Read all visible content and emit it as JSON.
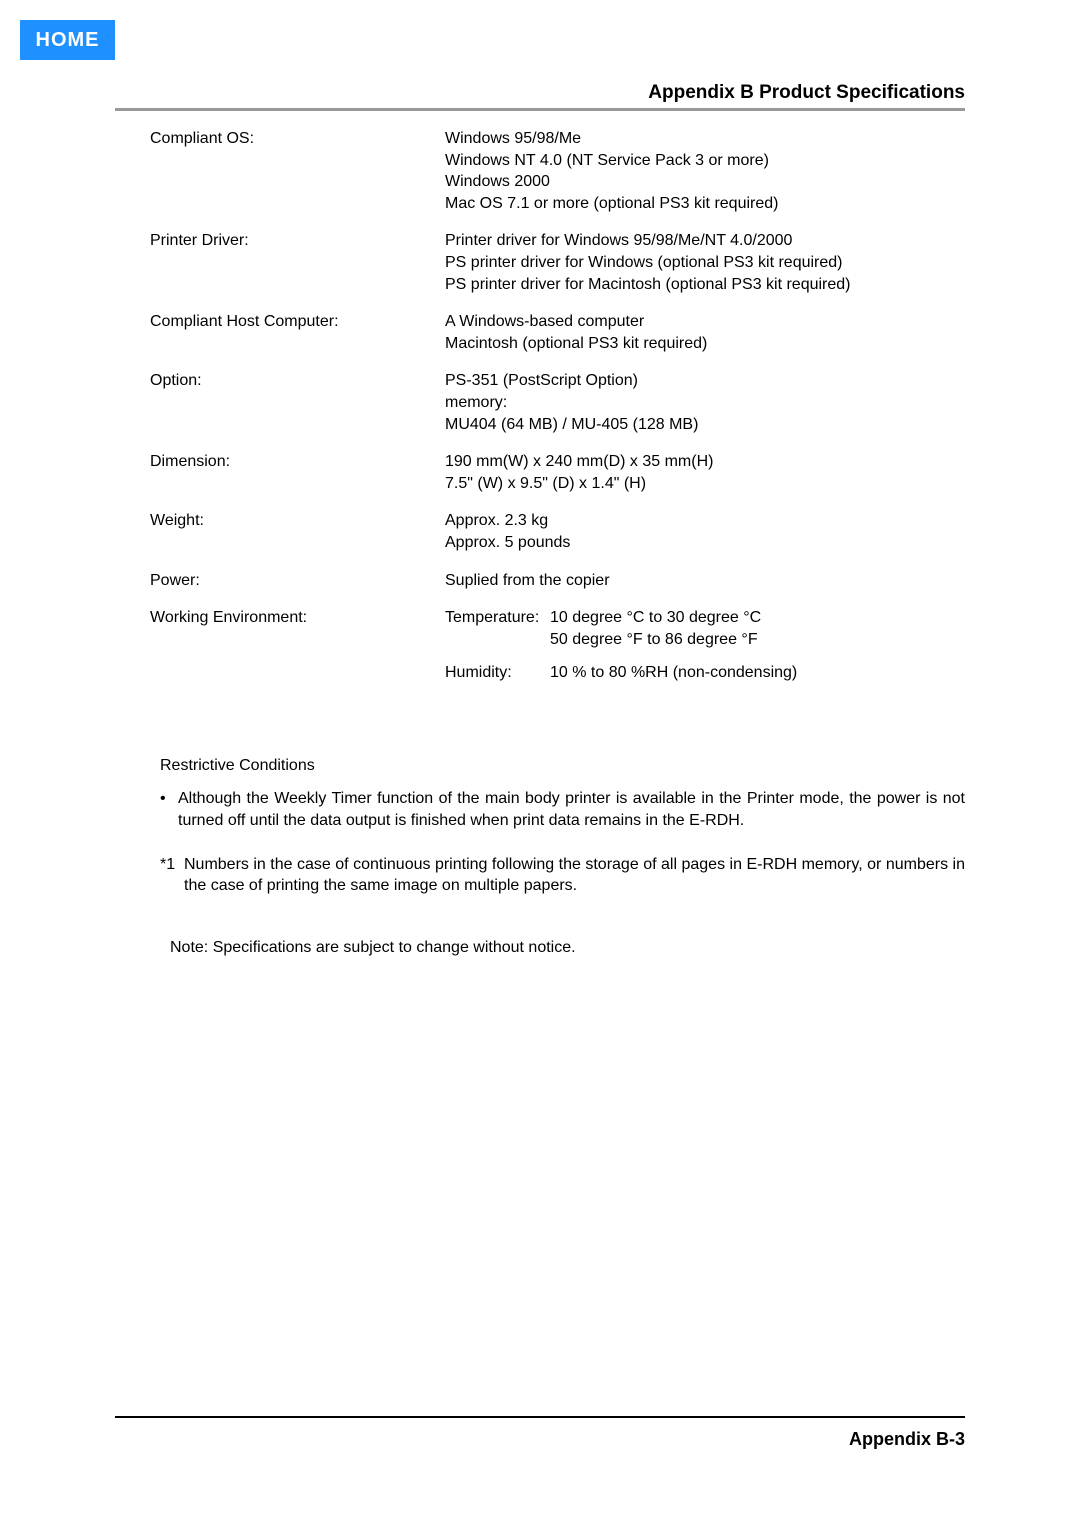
{
  "nav": {
    "home_label": "HOME"
  },
  "header": {
    "section_title": "Appendix B Product Specifications"
  },
  "specs": [
    {
      "label": "Compliant OS:",
      "lines": [
        "Windows 95/98/Me",
        "Windows NT 4.0 (NT Service Pack 3 or more)",
        "Windows 2000",
        "Mac OS 7.1 or more (optional PS3 kit required)"
      ]
    },
    {
      "label": "Printer Driver:",
      "lines": [
        "Printer driver for Windows 95/98/Me/NT 4.0/2000",
        "PS printer driver for Windows (optional PS3 kit required)",
        "PS printer driver for Macintosh (optional PS3 kit required)"
      ]
    },
    {
      "label": "Compliant Host Computer:",
      "lines": [
        "A Windows-based computer",
        "Macintosh (optional PS3 kit required)"
      ]
    },
    {
      "label": "Option:",
      "lines": [
        "PS-351 (PostScript Option)",
        "memory:",
        "MU404 (64 MB) / MU-405 (128 MB)"
      ]
    },
    {
      "label": "Dimension:",
      "lines": [
        "190 mm(W) x 240 mm(D) x 35 mm(H)",
        "7.5\" (W) x 9.5\" (D) x 1.4\" (H)"
      ]
    },
    {
      "label": "Weight:",
      "lines": [
        "Approx. 2.3 kg",
        "Approx. 5 pounds"
      ]
    },
    {
      "label": "Power:",
      "lines": [
        "Suplied from the copier"
      ]
    }
  ],
  "working_env": {
    "label": "Working Environment:",
    "rows": [
      {
        "sublabel": "Temperature:",
        "lines": [
          "10 degree °C to 30 degree °C",
          "50 degree °F to 86 degree °F"
        ]
      },
      {
        "sublabel": "Humidity:",
        "lines": [
          "10 % to 80 %RH (non-condensing)"
        ]
      }
    ]
  },
  "restrictive": {
    "title": "Restrictive Conditions",
    "bullet": "Although the Weekly Timer function of the main body printer is available in the Printer mode, the power is not turned off until the data output is finished when print data remains in the E-RDH.",
    "footnote_marker": "*1",
    "footnote": "Numbers in the case of continuous printing following the storage of all pages in E-RDH memory, or numbers in the case of printing the same image on multiple papers.",
    "note": "Note: Specifications are subject to change without notice."
  },
  "footer": {
    "page_number": "Appendix B-3"
  },
  "colors": {
    "home_bg": "#1e90ff",
    "hr_gray": "#999999"
  }
}
